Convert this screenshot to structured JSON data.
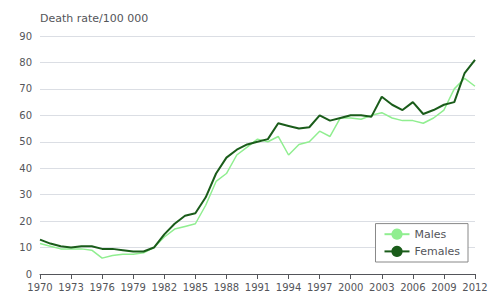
{
  "chart_data": {
    "type": "line",
    "ylabel": "Death rate/100 000",
    "x": [
      1970,
      1971,
      1972,
      1973,
      1974,
      1975,
      1976,
      1977,
      1978,
      1979,
      1980,
      1981,
      1982,
      1983,
      1984,
      1985,
      1986,
      1987,
      1988,
      1989,
      1990,
      1991,
      1992,
      1993,
      1994,
      1995,
      1996,
      1997,
      1998,
      1999,
      2000,
      2001,
      2002,
      2003,
      2004,
      2005,
      2006,
      2007,
      2008,
      2009,
      2010,
      2011,
      2012
    ],
    "series": [
      {
        "name": "Males",
        "color": "#90EE90",
        "values": [
          11.5,
          10.5,
          9.5,
          9.5,
          9.5,
          9.0,
          6.0,
          7.0,
          7.5,
          7.5,
          8.0,
          10.0,
          14.0,
          17.0,
          18.0,
          19.0,
          26.0,
          35.0,
          38.0,
          45.0,
          48.0,
          51.0,
          50.0,
          52.0,
          45.0,
          49.0,
          50.0,
          54.0,
          52.0,
          59.0,
          59.0,
          58.5,
          60.0,
          61.0,
          59.0,
          58.0,
          58.0,
          57.0,
          59.0,
          62.0,
          70.0,
          74.0,
          71.0
        ]
      },
      {
        "name": "Females",
        "color": "#1a5c1a",
        "values": [
          13.0,
          11.5,
          10.5,
          10.0,
          10.5,
          10.5,
          9.5,
          9.5,
          9.0,
          8.5,
          8.5,
          10.0,
          15.0,
          19.0,
          22.0,
          23.0,
          29.0,
          38.0,
          44.0,
          47.0,
          49.0,
          50.0,
          51.0,
          57.0,
          56.0,
          55.0,
          55.5,
          60.0,
          58.0,
          59.0,
          60.0,
          60.0,
          59.5,
          67.0,
          64.0,
          62.0,
          65.0,
          60.5,
          62.0,
          64.0,
          65.0,
          76.0,
          81.0
        ]
      }
    ],
    "xlim": [
      1970,
      2012
    ],
    "xticks": [
      1970,
      1973,
      1976,
      1979,
      1982,
      1985,
      1988,
      1991,
      1994,
      1997,
      2000,
      2003,
      2006,
      2009,
      2012
    ],
    "ylim": [
      0,
      90
    ],
    "yticks": [
      0,
      10,
      20,
      30,
      40,
      50,
      60,
      70,
      80,
      90
    ],
    "grid": true,
    "legend": "lower right"
  }
}
